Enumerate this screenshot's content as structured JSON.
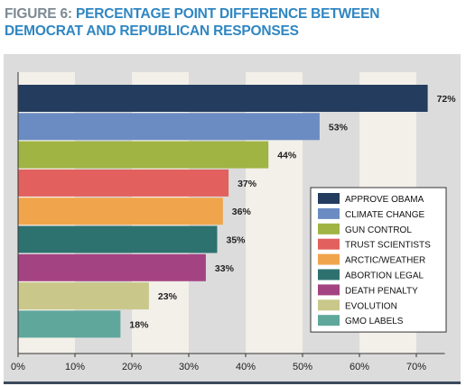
{
  "figure": {
    "label": "FIGURE 6:",
    "title": "PERCENTAGE POINT DIFFERENCE BETWEEN DEMOCRAT AND REPUBLICAN RESPONSES"
  },
  "chart_data": {
    "type": "bar",
    "orientation": "horizontal",
    "title": "FIGURE 6: PERCENTAGE POINT DIFFERENCE BETWEEN DEMOCRAT AND REPUBLICAN RESPONSES",
    "categories": [
      "APPROVE OBAMA",
      "CLIMATE CHANGE",
      "GUN CONTROL",
      "TRUST SCIENTISTS",
      "ARCTIC/WEATHER",
      "ABORTION LEGAL",
      "DEATH PENALTY",
      "EVOLUTION",
      "GMO LABELS"
    ],
    "values": [
      72,
      53,
      44,
      37,
      36,
      35,
      33,
      23,
      18
    ],
    "value_labels": [
      "72%",
      "53%",
      "44%",
      "37%",
      "36%",
      "35%",
      "33%",
      "23%",
      "18%"
    ],
    "colors": [
      "#243c5e",
      "#6b8cc2",
      "#9fb443",
      "#e2615e",
      "#f0a54c",
      "#2e7270",
      "#a44382",
      "#c9c88a",
      "#5fa79b"
    ],
    "xlabel": "",
    "ylabel": "",
    "xlim": [
      0,
      75
    ],
    "x_ticks": [
      0,
      10,
      20,
      30,
      40,
      50,
      60,
      70
    ],
    "x_tick_labels": [
      "0%",
      "10%",
      "20%",
      "30%",
      "40%",
      "50%",
      "60%",
      "70%"
    ],
    "grid": "alternating vertical bands",
    "legend": {
      "position": "right-center",
      "entries": [
        "APPROVE OBAMA",
        "CLIMATE CHANGE",
        "GUN CONTROL",
        "TRUST SCIENTISTS",
        "ARCTIC/WEATHER",
        "ABORTION LEGAL",
        "DEATH PENALTY",
        "EVOLUTION",
        "GMO LABELS"
      ]
    }
  },
  "colors": {
    "background_band_light": "#f3efe9",
    "background_band_gray": "#dcdcdc",
    "axis": "#333333",
    "title_blue": "#2f86c2",
    "title_gray": "#7d8a94"
  }
}
